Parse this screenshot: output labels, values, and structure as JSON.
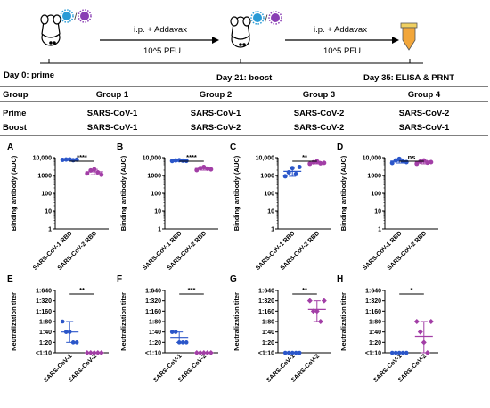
{
  "colors": {
    "cov1": "#2b56c9",
    "cov2": "#a23ea6",
    "arrow": "#000000",
    "tube": "#f2a63a",
    "tube_cap": "#f0d060"
  },
  "timeline": {
    "steps": [
      {
        "label": "Day 0: prime"
      },
      {
        "label": "Day 21: boost"
      },
      {
        "label": "Day 35: ELISA & PRNT"
      }
    ],
    "arrows": [
      {
        "top": "i.p. + Addavax",
        "bottom": "10^5 PFU"
      },
      {
        "top": "i.p. + Addavax",
        "bottom": "10^5 PFU"
      }
    ]
  },
  "groups_table": {
    "header": [
      "Group",
      "Group 1",
      "Group 2",
      "Group 3",
      "Group 4"
    ],
    "rows": [
      [
        "Prime",
        "SARS-CoV-1",
        "SARS-CoV-1",
        "SARS-CoV-2",
        "SARS-CoV-2"
      ],
      [
        "Boost",
        "SARS-CoV-1",
        "SARS-CoV-2",
        "SARS-CoV-2",
        "SARS-CoV-1"
      ]
    ]
  },
  "chart_data": [
    {
      "type": "scatter",
      "panel": "A",
      "ylabel": "Binding antibody (AUC)",
      "y_ticks": [
        "10,000",
        "1000",
        "100",
        "10",
        "1"
      ],
      "scale": "log",
      "ylim": [
        1,
        10000
      ],
      "categories": [
        "SARS-CoV-1 RBD",
        "SARS-CoV-2 RBD"
      ],
      "series": [
        {
          "values": [
            7500,
            7800,
            8000,
            7200,
            7700
          ],
          "mean": 7640
        },
        {
          "values": [
            1300,
            1900,
            2200,
            1500,
            1100
          ],
          "mean": 1600
        }
      ],
      "significance": "****"
    },
    {
      "type": "scatter",
      "panel": "B",
      "ylabel": "Binding antibody (AUC)",
      "y_ticks": [
        "10,000",
        "1000",
        "100",
        "10",
        "1"
      ],
      "scale": "log",
      "ylim": [
        1,
        10000
      ],
      "categories": [
        "SARS-CoV-1 RBD",
        "SARS-CoV-2 RBD"
      ],
      "series": [
        {
          "values": [
            6500,
            7000,
            7200,
            6800,
            6600
          ],
          "mean": 6800
        },
        {
          "values": [
            2000,
            2600,
            3000,
            2400,
            2200
          ],
          "mean": 2440
        }
      ],
      "significance": "****"
    },
    {
      "type": "scatter",
      "panel": "C",
      "ylabel": "Binding antibody (AUC)",
      "y_ticks": [
        "10,000",
        "1000",
        "100",
        "10",
        "1"
      ],
      "scale": "log",
      "ylim": [
        1,
        10000
      ],
      "categories": [
        "SARS-CoV-1 RBD",
        "SARS-CoV-2 RBD"
      ],
      "series": [
        {
          "values": [
            900,
            1500,
            2600,
            1200,
            3000
          ],
          "mean": 1700
        },
        {
          "values": [
            4500,
            5500,
            6200,
            4800,
            5100
          ],
          "mean": 5200
        }
      ],
      "significance": "**"
    },
    {
      "type": "scatter",
      "panel": "D",
      "ylabel": "Binding antibody (AUC)",
      "y_ticks": [
        "10,000",
        "1000",
        "100",
        "10",
        "1"
      ],
      "scale": "log",
      "ylim": [
        1,
        10000
      ],
      "categories": [
        "SARS-CoV-1 RBD",
        "SARS-CoV-2 RBD"
      ],
      "series": [
        {
          "values": [
            5000,
            7000,
            8500,
            6200,
            5600
          ],
          "mean": 6400
        },
        {
          "values": [
            4500,
            6000,
            7000,
            5200,
            5600
          ],
          "mean": 5600
        }
      ],
      "significance": "ns"
    },
    {
      "type": "scatter",
      "panel": "E",
      "ylabel": "Neutralization titer",
      "y_ticks": [
        "1:640",
        "1:320",
        "1:160",
        "1:80",
        "1:40",
        "1:20",
        "<1:10"
      ],
      "scale": "log2",
      "categories": [
        "SARS-CoV-1",
        "SARS-CoV-2"
      ],
      "series": [
        {
          "values": [
            "1:80",
            "1:40",
            "1:40",
            "1:20",
            "1:20"
          ],
          "mean": "1:40"
        },
        {
          "values": [
            "<1:10",
            "<1:10",
            "<1:10",
            "<1:10",
            "<1:10"
          ],
          "mean": "<1:10"
        }
      ],
      "significance": "**"
    },
    {
      "type": "scatter",
      "panel": "F",
      "ylabel": "Neutralization titer",
      "y_ticks": [
        "1:640",
        "1:320",
        "1:160",
        "1:80",
        "1:40",
        "1:20",
        "<1:10"
      ],
      "scale": "log2",
      "categories": [
        "SARS-CoV-1",
        "SARS-CoV-2"
      ],
      "series": [
        {
          "values": [
            "1:40",
            "1:40",
            "1:20",
            "1:20",
            "1:20"
          ],
          "mean": "1:28"
        },
        {
          "values": [
            "<1:10",
            "<1:10",
            "<1:10",
            "<1:10",
            "<1:10"
          ],
          "mean": "<1:10"
        }
      ],
      "significance": "***"
    },
    {
      "type": "scatter",
      "panel": "G",
      "ylabel": "Neutralization titer",
      "y_ticks": [
        "1:640",
        "1:320",
        "1:160",
        "1:80",
        "1:40",
        "1:20",
        "<1:10"
      ],
      "scale": "log2",
      "categories": [
        "SARS-CoV-1",
        "SARS-CoV-2"
      ],
      "series": [
        {
          "values": [
            "<1:10",
            "<1:10",
            "<1:10",
            "<1:10",
            "<1:10"
          ],
          "mean": "<1:10"
        },
        {
          "values": [
            "1:320",
            "1:160",
            "1:160",
            "1:80",
            "1:320"
          ],
          "mean": "1:180"
        }
      ],
      "significance": "**"
    },
    {
      "type": "scatter",
      "panel": "H",
      "ylabel": "Neutralization titer",
      "y_ticks": [
        "1:640",
        "1:320",
        "1:160",
        "1:80",
        "1:40",
        "1:20",
        "<1:10"
      ],
      "scale": "log2",
      "categories": [
        "SARS-CoV-1",
        "SARS-CoV-2"
      ],
      "series": [
        {
          "values": [
            "<1:10",
            "<1:10",
            "<1:10",
            "<1:10",
            "<1:10"
          ],
          "mean": "<1:10"
        },
        {
          "values": [
            "1:80",
            "1:40",
            "1:20",
            "<1:10",
            "1:80"
          ],
          "mean": "1:30"
        }
      ],
      "significance": "*"
    }
  ]
}
